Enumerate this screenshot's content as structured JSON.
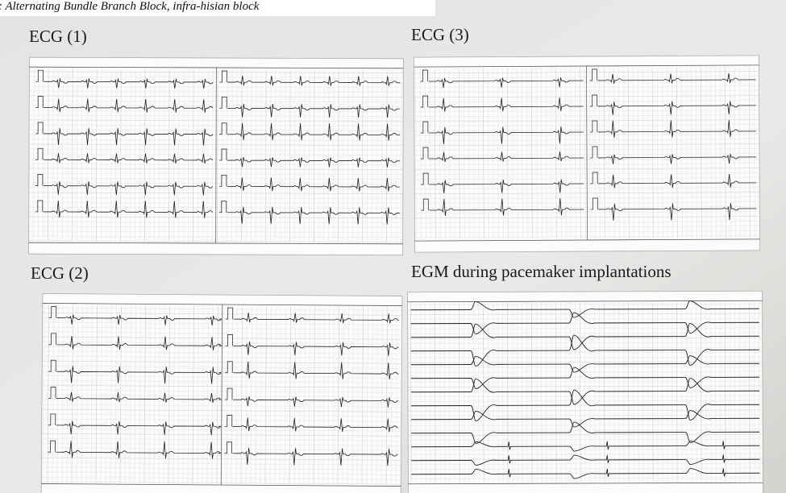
{
  "caption": ": Alternating Bundle Branch Block, infra-hisian block",
  "panels": [
    {
      "label": "ECG (1)"
    },
    {
      "label": "ECG (3)"
    },
    {
      "label": "ECG (2)"
    },
    {
      "label": "EGM during pacemaker implantations"
    }
  ]
}
